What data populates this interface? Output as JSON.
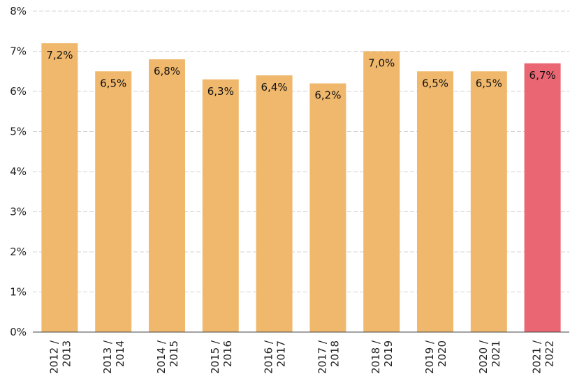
{
  "chart_data": {
    "type": "bar",
    "categories": [
      [
        "2012 /",
        "2013"
      ],
      [
        "2013 /",
        "2014"
      ],
      [
        "2014 /",
        "2015"
      ],
      [
        "2015 /",
        "2016"
      ],
      [
        "2016 /",
        "2017"
      ],
      [
        "2017 /",
        "2018"
      ],
      [
        "2018 /",
        "2019"
      ],
      [
        "2019 /",
        "2020"
      ],
      [
        "2020 /",
        "2021"
      ],
      [
        "2021 /",
        "2022"
      ]
    ],
    "values": [
      7.2,
      6.5,
      6.8,
      6.3,
      6.4,
      6.2,
      7.0,
      6.5,
      6.5,
      6.7
    ],
    "data_labels": [
      "7,2%",
      "6,5%",
      "6,8%",
      "6,3%",
      "6,4%",
      "6,2%",
      "7,0%",
      "6,5%",
      "6,5%",
      "6,7%"
    ],
    "title": "",
    "xlabel": "",
    "ylabel": "",
    "ylim": [
      0,
      8
    ],
    "yticks": [
      "0%",
      "1%",
      "2%",
      "3%",
      "4%",
      "5%",
      "6%",
      "7%",
      "8%"
    ],
    "grid": true,
    "colors": {
      "default": "#F0B86C",
      "highlight": "#EA6672",
      "highlight_index": 9
    }
  }
}
